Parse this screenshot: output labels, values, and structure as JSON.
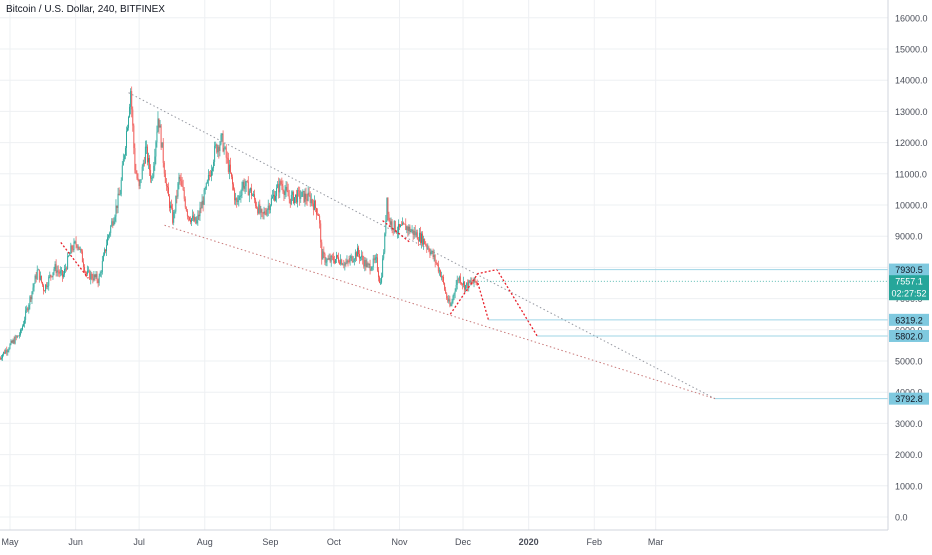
{
  "header": {
    "title": "Bitcoin / U.S. Dollar, 240, BITFINEX"
  },
  "colors": {
    "up": "#26a69a",
    "down": "#ef5350",
    "grid": "#eef0f3",
    "axis_text": "#4a4e59",
    "trend": "#9598a1",
    "projection": "#e8212b",
    "level_line": "#9fd5e6",
    "level_label_bg": "#7fc9df",
    "price_label_bg": "#26a69a"
  },
  "chart_data": {
    "type": "candlestick",
    "title": "Bitcoin / U.S. Dollar, 240, BITFINEX",
    "xlabel": "",
    "ylabel": "",
    "ylim": [
      -160,
      16600
    ],
    "y_ticks": [
      0,
      1000,
      2000,
      3000,
      4000,
      5000,
      6000,
      7000,
      8000,
      9000,
      10000,
      11000,
      12000,
      13000,
      14000,
      15000,
      16000
    ],
    "y_tick_labels": [
      "0.0",
      "1000.0",
      "2000.0",
      "3000.0",
      "4000.0",
      "5000.0",
      "6000.0",
      "7000.0",
      "8000.0",
      "9000.0",
      "10000.0",
      "11000.0",
      "12000.0",
      "13000.0",
      "14000.0",
      "15000.0",
      "16000.0"
    ],
    "x_ticks": [
      {
        "label": "May",
        "date": "2019-05-01"
      },
      {
        "label": "Jun",
        "date": "2019-06-01"
      },
      {
        "label": "Jul",
        "date": "2019-07-01"
      },
      {
        "label": "Aug",
        "date": "2019-08-01"
      },
      {
        "label": "Sep",
        "date": "2019-09-01"
      },
      {
        "label": "Oct",
        "date": "2019-10-01"
      },
      {
        "label": "Nov",
        "date": "2019-11-01"
      },
      {
        "label": "Dec",
        "date": "2019-12-01"
      },
      {
        "label": "2020",
        "date": "2020-01-01"
      },
      {
        "label": "Feb",
        "date": "2020-02-01"
      },
      {
        "label": "Mar",
        "date": "2020-03-01"
      }
    ],
    "price_path": [
      [
        "2019-04-26",
        5100
      ],
      [
        "2019-05-06",
        5900
      ],
      [
        "2019-05-14",
        7900
      ],
      [
        "2019-05-17",
        7300
      ],
      [
        "2019-05-22",
        8000
      ],
      [
        "2019-05-26",
        7700
      ],
      [
        "2019-05-30",
        8600
      ],
      [
        "2019-06-02",
        8800
      ],
      [
        "2019-06-06",
        7800
      ],
      [
        "2019-06-12",
        7600
      ],
      [
        "2019-06-16",
        8900
      ],
      [
        "2019-06-22",
        10400
      ],
      [
        "2019-06-26",
        13000
      ],
      [
        "2019-06-27",
        13700
      ],
      [
        "2019-06-29",
        11200
      ],
      [
        "2019-07-01",
        10500
      ],
      [
        "2019-07-04",
        11800
      ],
      [
        "2019-07-07",
        10800
      ],
      [
        "2019-07-10",
        12900
      ],
      [
        "2019-07-14",
        10500
      ],
      [
        "2019-07-17",
        9500
      ],
      [
        "2019-07-20",
        10900
      ],
      [
        "2019-07-24",
        9700
      ],
      [
        "2019-07-28",
        9400
      ],
      [
        "2019-08-02",
        10600
      ],
      [
        "2019-08-06",
        11800
      ],
      [
        "2019-08-09",
        12100
      ],
      [
        "2019-08-13",
        11000
      ],
      [
        "2019-08-16",
        10000
      ],
      [
        "2019-08-19",
        10700
      ],
      [
        "2019-08-23",
        10400
      ],
      [
        "2019-08-28",
        9600
      ],
      [
        "2019-09-01",
        10100
      ],
      [
        "2019-09-06",
        10700
      ],
      [
        "2019-09-10",
        10200
      ],
      [
        "2019-09-15",
        10300
      ],
      [
        "2019-09-20",
        10200
      ],
      [
        "2019-09-24",
        9700
      ],
      [
        "2019-09-25",
        8400
      ],
      [
        "2019-09-28",
        8200
      ],
      [
        "2019-10-03",
        8300
      ],
      [
        "2019-10-07",
        8100
      ],
      [
        "2019-10-12",
        8500
      ],
      [
        "2019-10-17",
        8000
      ],
      [
        "2019-10-21",
        8200
      ],
      [
        "2019-10-23",
        7450
      ],
      [
        "2019-10-25",
        8900
      ],
      [
        "2019-10-26",
        10300
      ],
      [
        "2019-10-27",
        9500
      ],
      [
        "2019-10-31",
        9200
      ],
      [
        "2019-11-04",
        9300
      ],
      [
        "2019-11-08",
        9100
      ],
      [
        "2019-11-12",
        8900
      ],
      [
        "2019-11-15",
        8600
      ],
      [
        "2019-11-18",
        8200
      ],
      [
        "2019-11-21",
        7700
      ],
      [
        "2019-11-23",
        7100
      ],
      [
        "2019-11-25",
        6700
      ],
      [
        "2019-11-27",
        7300
      ],
      [
        "2019-11-29",
        7700
      ],
      [
        "2019-12-02",
        7400
      ],
      [
        "2019-12-05",
        7500
      ],
      [
        "2019-12-08",
        7560
      ]
    ],
    "trendlines": [
      {
        "from": [
          "2019-06-26",
          13600
        ],
        "to": [
          "2020-03-29",
          3792.8
        ],
        "style": "dotted-gray"
      },
      {
        "from": [
          "2019-07-13",
          9350
        ],
        "to": [
          "2020-03-29",
          3792.8
        ],
        "style": "dotted-red"
      }
    ],
    "projections": [
      {
        "points": [
          [
            "2019-05-25",
            8800
          ],
          [
            "2019-06-07",
            7650
          ]
        ]
      },
      {
        "points": [
          [
            "2019-10-24",
            9500
          ],
          [
            "2019-11-06",
            8800
          ]
        ]
      },
      {
        "points": [
          [
            "2019-11-25",
            6500
          ],
          [
            "2019-12-08",
            7800
          ],
          [
            "2019-12-17",
            7930.5
          ],
          [
            "2020-01-05",
            5802
          ]
        ]
      },
      {
        "points": [
          [
            "2019-12-08",
            7500
          ],
          [
            "2019-12-13",
            6319.2
          ]
        ]
      }
    ],
    "horizontal_levels": [
      {
        "price": 7930.5,
        "label": "7930.5",
        "start": "2019-12-17"
      },
      {
        "price": 6319.2,
        "label": "6319.2",
        "start": "2019-12-13"
      },
      {
        "price": 5802.0,
        "label": "5802.0",
        "start": "2020-01-05"
      },
      {
        "price": 3792.8,
        "label": "3792.8",
        "start": "2020-03-29"
      }
    ],
    "current_price": {
      "price": 7557.1,
      "label": "7557.1",
      "countdown": "02:27:52"
    },
    "grid": true
  }
}
